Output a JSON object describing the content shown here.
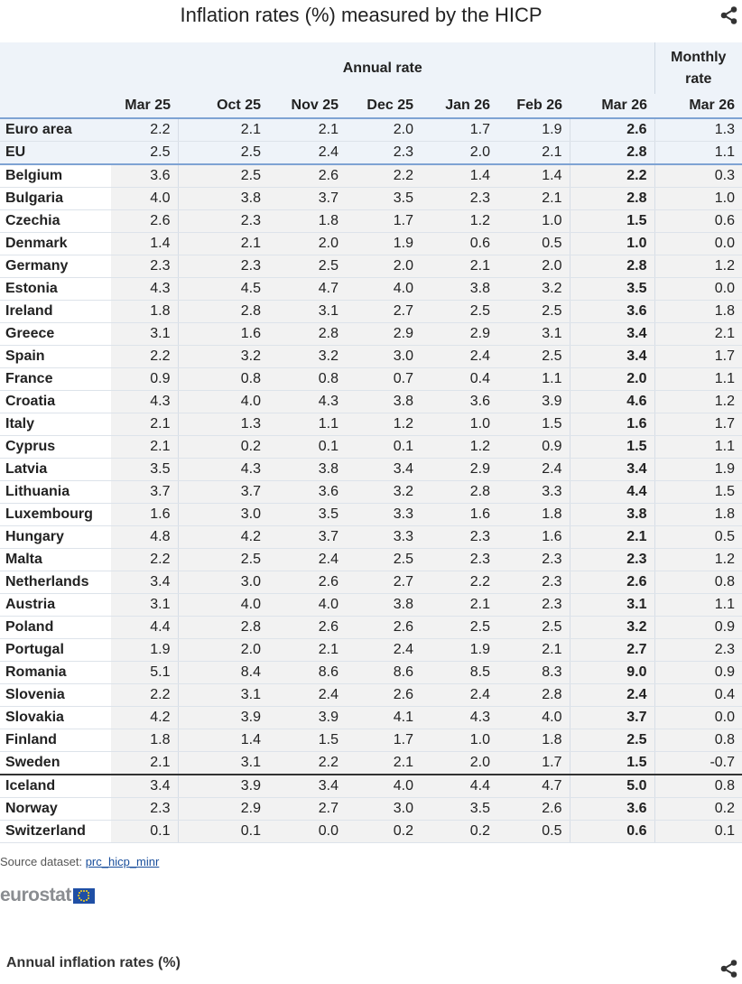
{
  "title": "Inflation rates (%) measured by the HICP",
  "icons": {
    "share": "share-icon",
    "eu_flag": "eu-flag-icon"
  },
  "colors": {
    "header_bg": "#eef3f9",
    "header_rule": "#7ea3d3",
    "link": "#1a4f9c"
  },
  "chart_data": {
    "type": "table",
    "title": "Inflation rates (%) measured by the HICP",
    "column_groups": [
      {
        "label": "Annual rate",
        "span": 7
      },
      {
        "label": "Monthly rate",
        "span": 1
      }
    ],
    "columns": [
      "",
      "Mar 25",
      "Oct 25",
      "Nov 25",
      "Dec 25",
      "Jan 26",
      "Feb 26",
      "Mar 26",
      "Mar 26"
    ],
    "rows": [
      {
        "name": "Euro area",
        "values": [
          "2.2",
          "2.1",
          "2.1",
          "2.0",
          "1.7",
          "1.9",
          "2.6",
          "1.3"
        ]
      },
      {
        "name": "EU",
        "values": [
          "2.5",
          "2.5",
          "2.4",
          "2.3",
          "2.0",
          "2.1",
          "2.8",
          "1.1"
        ]
      },
      {
        "name": "Belgium",
        "values": [
          "3.6",
          "2.5",
          "2.6",
          "2.2",
          "1.4",
          "1.4",
          "2.2",
          "0.3"
        ]
      },
      {
        "name": "Bulgaria",
        "values": [
          "4.0",
          "3.8",
          "3.7",
          "3.5",
          "2.3",
          "2.1",
          "2.8",
          "1.0"
        ]
      },
      {
        "name": "Czechia",
        "values": [
          "2.6",
          "2.3",
          "1.8",
          "1.7",
          "1.2",
          "1.0",
          "1.5",
          "0.6"
        ]
      },
      {
        "name": "Denmark",
        "values": [
          "1.4",
          "2.1",
          "2.0",
          "1.9",
          "0.6",
          "0.5",
          "1.0",
          "0.0"
        ]
      },
      {
        "name": "Germany",
        "values": [
          "2.3",
          "2.3",
          "2.5",
          "2.0",
          "2.1",
          "2.0",
          "2.8",
          "1.2"
        ]
      },
      {
        "name": "Estonia",
        "values": [
          "4.3",
          "4.5",
          "4.7",
          "4.0",
          "3.8",
          "3.2",
          "3.5",
          "0.0"
        ]
      },
      {
        "name": "Ireland",
        "values": [
          "1.8",
          "2.8",
          "3.1",
          "2.7",
          "2.5",
          "2.5",
          "3.6",
          "1.8"
        ]
      },
      {
        "name": "Greece",
        "values": [
          "3.1",
          "1.6",
          "2.8",
          "2.9",
          "2.9",
          "3.1",
          "3.4",
          "2.1"
        ]
      },
      {
        "name": "Spain",
        "values": [
          "2.2",
          "3.2",
          "3.2",
          "3.0",
          "2.4",
          "2.5",
          "3.4",
          "1.7"
        ]
      },
      {
        "name": "France",
        "values": [
          "0.9",
          "0.8",
          "0.8",
          "0.7",
          "0.4",
          "1.1",
          "2.0",
          "1.1"
        ]
      },
      {
        "name": "Croatia",
        "values": [
          "4.3",
          "4.0",
          "4.3",
          "3.8",
          "3.6",
          "3.9",
          "4.6",
          "1.2"
        ]
      },
      {
        "name": "Italy",
        "values": [
          "2.1",
          "1.3",
          "1.1",
          "1.2",
          "1.0",
          "1.5",
          "1.6",
          "1.7"
        ]
      },
      {
        "name": "Cyprus",
        "values": [
          "2.1",
          "0.2",
          "0.1",
          "0.1",
          "1.2",
          "0.9",
          "1.5",
          "1.1"
        ]
      },
      {
        "name": "Latvia",
        "values": [
          "3.5",
          "4.3",
          "3.8",
          "3.4",
          "2.9",
          "2.4",
          "3.4",
          "1.9"
        ]
      },
      {
        "name": "Lithuania",
        "values": [
          "3.7",
          "3.7",
          "3.6",
          "3.2",
          "2.8",
          "3.3",
          "4.4",
          "1.5"
        ]
      },
      {
        "name": "Luxembourg",
        "values": [
          "1.6",
          "3.0",
          "3.5",
          "3.3",
          "1.6",
          "1.8",
          "3.8",
          "1.8"
        ]
      },
      {
        "name": "Hungary",
        "values": [
          "4.8",
          "4.2",
          "3.7",
          "3.3",
          "2.3",
          "1.6",
          "2.1",
          "0.5"
        ]
      },
      {
        "name": "Malta",
        "values": [
          "2.2",
          "2.5",
          "2.4",
          "2.5",
          "2.3",
          "2.3",
          "2.3",
          "1.2"
        ]
      },
      {
        "name": "Netherlands",
        "values": [
          "3.4",
          "3.0",
          "2.6",
          "2.7",
          "2.2",
          "2.3",
          "2.6",
          "0.8"
        ]
      },
      {
        "name": "Austria",
        "values": [
          "3.1",
          "4.0",
          "4.0",
          "3.8",
          "2.1",
          "2.3",
          "3.1",
          "1.1"
        ]
      },
      {
        "name": "Poland",
        "values": [
          "4.4",
          "2.8",
          "2.6",
          "2.6",
          "2.5",
          "2.5",
          "3.2",
          "0.9"
        ]
      },
      {
        "name": "Portugal",
        "values": [
          "1.9",
          "2.0",
          "2.1",
          "2.4",
          "1.9",
          "2.1",
          "2.7",
          "2.3"
        ]
      },
      {
        "name": "Romania",
        "values": [
          "5.1",
          "8.4",
          "8.6",
          "8.6",
          "8.5",
          "8.3",
          "9.0",
          "0.9"
        ]
      },
      {
        "name": "Slovenia",
        "values": [
          "2.2",
          "3.1",
          "2.4",
          "2.6",
          "2.4",
          "2.8",
          "2.4",
          "0.4"
        ]
      },
      {
        "name": "Slovakia",
        "values": [
          "4.2",
          "3.9",
          "3.9",
          "4.1",
          "4.3",
          "4.0",
          "3.7",
          "0.0"
        ]
      },
      {
        "name": "Finland",
        "values": [
          "1.8",
          "1.4",
          "1.5",
          "1.7",
          "1.0",
          "1.8",
          "2.5",
          "0.8"
        ]
      },
      {
        "name": "Sweden",
        "values": [
          "2.1",
          "3.1",
          "2.2",
          "2.1",
          "2.0",
          "1.7",
          "1.5",
          "-0.7"
        ]
      },
      {
        "name": "Iceland",
        "values": [
          "3.4",
          "3.9",
          "3.4",
          "4.0",
          "4.4",
          "4.7",
          "5.0",
          "0.8"
        ]
      },
      {
        "name": "Norway",
        "values": [
          "2.3",
          "2.9",
          "2.7",
          "3.0",
          "3.5",
          "2.6",
          "3.6",
          "0.2"
        ]
      },
      {
        "name": "Switzerland",
        "values": [
          "0.1",
          "0.1",
          "0.0",
          "0.2",
          "0.2",
          "0.5",
          "0.6",
          "0.1"
        ]
      }
    ]
  },
  "source": {
    "label": "Source dataset:",
    "link": "prc_hicp_minr"
  },
  "logo": {
    "text": "eurostat"
  },
  "next_section": {
    "title": "Annual inflation rates (%)"
  }
}
